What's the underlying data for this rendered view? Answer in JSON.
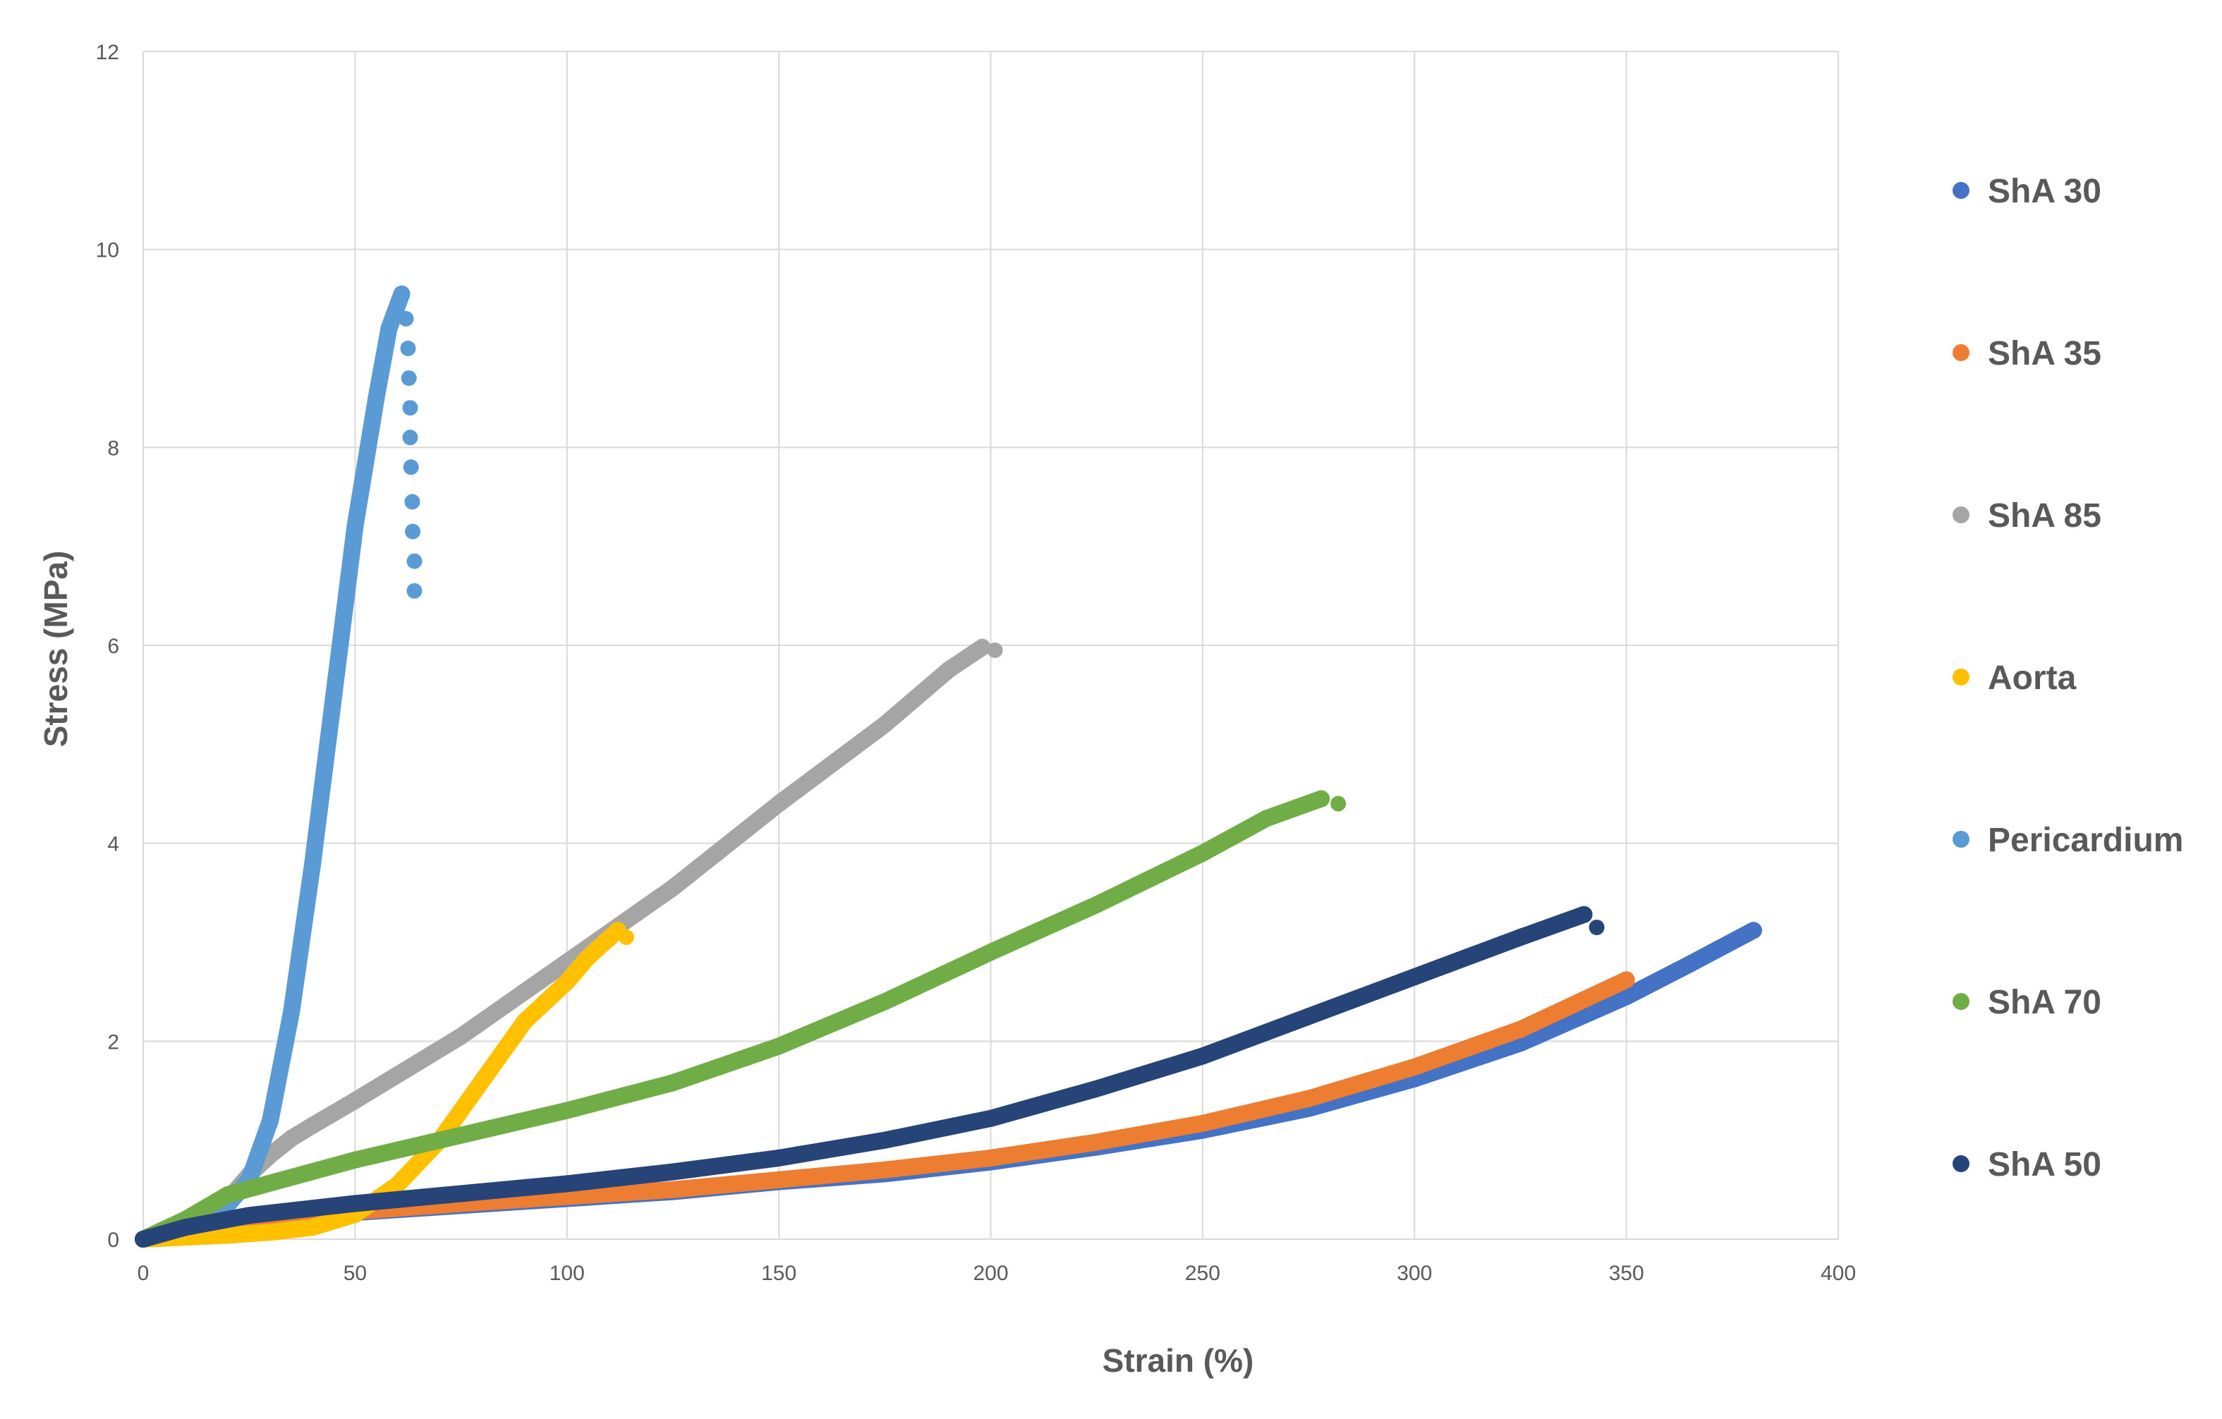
{
  "chart_data": {
    "type": "scatter",
    "title": "",
    "xlabel": "Strain (%)",
    "ylabel": "Stress (MPa)",
    "xlim": [
      0,
      400
    ],
    "ylim": [
      0,
      12
    ],
    "x_ticks": [
      "0",
      "50",
      "100",
      "150",
      "200",
      "250",
      "300",
      "350",
      "400"
    ],
    "y_ticks": [
      "0",
      "2",
      "4",
      "6",
      "8",
      "10",
      "12"
    ],
    "grid": true,
    "legend_position": "right",
    "series": [
      {
        "name": "ShA 30",
        "color": "#4472c4",
        "points": [
          [
            0,
            0
          ],
          [
            10,
            0.1
          ],
          [
            25,
            0.17
          ],
          [
            50,
            0.27
          ],
          [
            75,
            0.34
          ],
          [
            100,
            0.41
          ],
          [
            125,
            0.48
          ],
          [
            150,
            0.58
          ],
          [
            175,
            0.66
          ],
          [
            200,
            0.78
          ],
          [
            225,
            0.93
          ],
          [
            250,
            1.1
          ],
          [
            275,
            1.32
          ],
          [
            300,
            1.62
          ],
          [
            325,
            1.98
          ],
          [
            350,
            2.45
          ],
          [
            365,
            2.78
          ],
          [
            380,
            3.12
          ]
        ],
        "end_points": []
      },
      {
        "name": "ShA 35",
        "color": "#ed7d31",
        "points": [
          [
            0,
            0
          ],
          [
            10,
            0.1
          ],
          [
            25,
            0.18
          ],
          [
            50,
            0.28
          ],
          [
            75,
            0.36
          ],
          [
            100,
            0.43
          ],
          [
            125,
            0.5
          ],
          [
            150,
            0.6
          ],
          [
            175,
            0.7
          ],
          [
            200,
            0.82
          ],
          [
            225,
            0.98
          ],
          [
            250,
            1.17
          ],
          [
            275,
            1.42
          ],
          [
            300,
            1.74
          ],
          [
            325,
            2.12
          ],
          [
            340,
            2.42
          ],
          [
            350,
            2.62
          ]
        ],
        "end_points": []
      },
      {
        "name": "ShA 85",
        "color": "#a5a5a5",
        "points": [
          [
            0,
            0
          ],
          [
            10,
            0.12
          ],
          [
            20,
            0.4
          ],
          [
            25,
            0.65
          ],
          [
            30,
            0.85
          ],
          [
            35,
            1.02
          ],
          [
            40,
            1.15
          ],
          [
            50,
            1.4
          ],
          [
            75,
            2.05
          ],
          [
            100,
            2.8
          ],
          [
            125,
            3.55
          ],
          [
            150,
            4.4
          ],
          [
            175,
            5.2
          ],
          [
            190,
            5.75
          ],
          [
            198,
            5.98
          ]
        ],
        "end_points": [
          [
            201,
            5.95
          ]
        ]
      },
      {
        "name": "Aorta",
        "color": "#ffc000",
        "points": [
          [
            0,
            0
          ],
          [
            10,
            0.02
          ],
          [
            20,
            0.04
          ],
          [
            30,
            0.07
          ],
          [
            40,
            0.12
          ],
          [
            50,
            0.25
          ],
          [
            60,
            0.55
          ],
          [
            70,
            1.0
          ],
          [
            80,
            1.6
          ],
          [
            90,
            2.2
          ],
          [
            100,
            2.6
          ],
          [
            105,
            2.85
          ],
          [
            112,
            3.12
          ]
        ],
        "end_points": [
          [
            114,
            3.05
          ]
        ]
      },
      {
        "name": "Pericardium",
        "color": "#5b9bd5",
        "points": [
          [
            0,
            0
          ],
          [
            10,
            0.15
          ],
          [
            20,
            0.35
          ],
          [
            25,
            0.6
          ],
          [
            30,
            1.2
          ],
          [
            35,
            2.3
          ],
          [
            40,
            3.8
          ],
          [
            45,
            5.5
          ],
          [
            50,
            7.2
          ],
          [
            55,
            8.5
          ],
          [
            58,
            9.2
          ],
          [
            61,
            9.55
          ]
        ],
        "end_points": [
          [
            62,
            9.3
          ],
          [
            62.5,
            9.0
          ],
          [
            62.7,
            8.7
          ],
          [
            63,
            8.4
          ],
          [
            63,
            8.1
          ],
          [
            63.2,
            7.8
          ],
          [
            63.5,
            7.45
          ],
          [
            63.6,
            7.15
          ],
          [
            64,
            6.85
          ],
          [
            64,
            6.55
          ]
        ]
      },
      {
        "name": "ShA 70",
        "color": "#70ad47",
        "points": [
          [
            0,
            0
          ],
          [
            10,
            0.2
          ],
          [
            20,
            0.45
          ],
          [
            50,
            0.8
          ],
          [
            75,
            1.05
          ],
          [
            100,
            1.3
          ],
          [
            125,
            1.58
          ],
          [
            150,
            1.95
          ],
          [
            175,
            2.4
          ],
          [
            200,
            2.9
          ],
          [
            225,
            3.38
          ],
          [
            250,
            3.9
          ],
          [
            265,
            4.25
          ],
          [
            278,
            4.45
          ]
        ],
        "end_points": [
          [
            282,
            4.4
          ]
        ]
      },
      {
        "name": "ShA 50",
        "color": "#264478",
        "points": [
          [
            0,
            0
          ],
          [
            10,
            0.12
          ],
          [
            25,
            0.24
          ],
          [
            50,
            0.36
          ],
          [
            75,
            0.46
          ],
          [
            100,
            0.56
          ],
          [
            125,
            0.68
          ],
          [
            150,
            0.82
          ],
          [
            175,
            1.0
          ],
          [
            200,
            1.22
          ],
          [
            225,
            1.52
          ],
          [
            250,
            1.85
          ],
          [
            275,
            2.25
          ],
          [
            300,
            2.65
          ],
          [
            325,
            3.05
          ],
          [
            340,
            3.28
          ]
        ],
        "end_points": [
          [
            343,
            3.15
          ]
        ]
      }
    ],
    "legend_order": [
      "ShA 30",
      "ShA 35",
      "ShA 85",
      "Aorta",
      "Pericardium",
      "ShA 70",
      "ShA 50"
    ]
  }
}
